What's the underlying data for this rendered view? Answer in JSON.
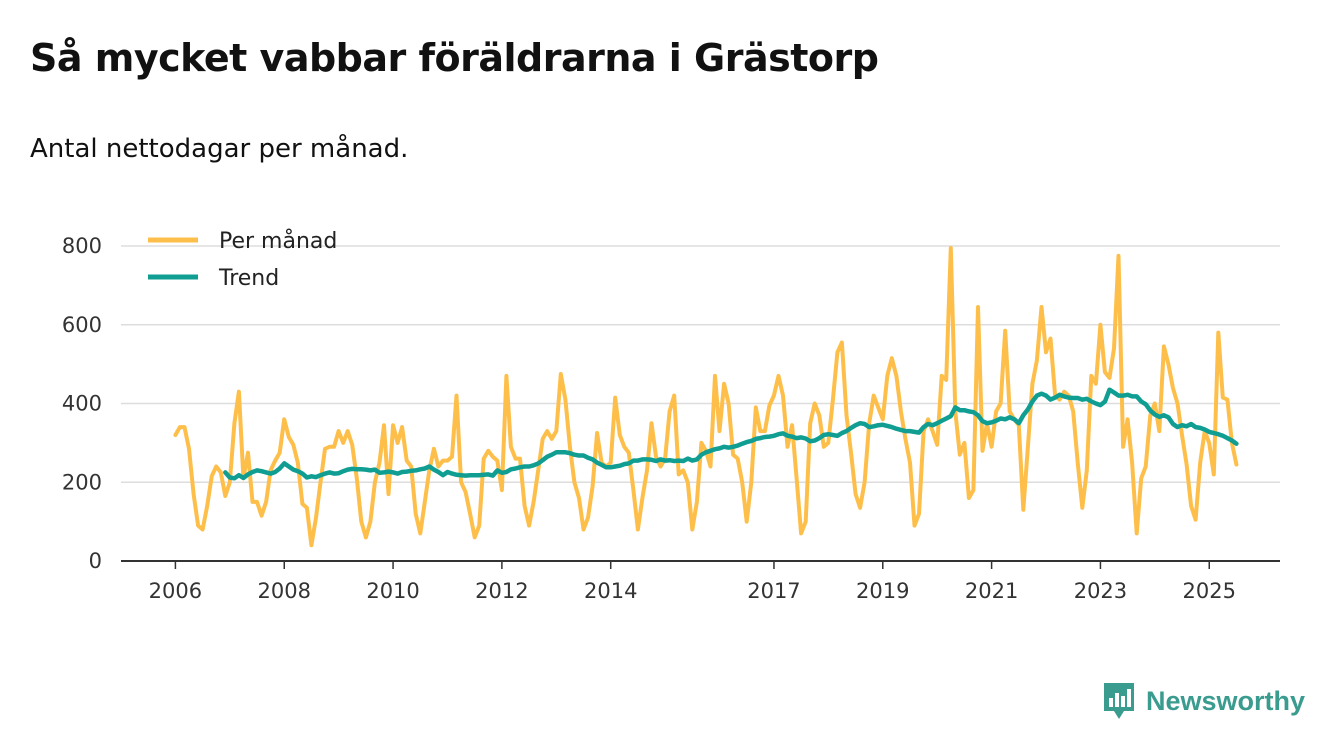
{
  "colors": {
    "monthly": "#fdbf4a",
    "trend": "#109e93",
    "brand": "#3a9b8f",
    "grid": "#dddddd",
    "axis": "#333333"
  },
  "brand": {
    "name": "Newsworthy",
    "icon": "newsworthy-logo-icon"
  },
  "chart_data": {
    "type": "line",
    "title": "Så mycket vabbar föräldrarna i Grästorp",
    "subtitle": "Antal nettodagar per månad.",
    "xlabel": "",
    "ylabel": "",
    "ylim": [
      0,
      800
    ],
    "xlim": [
      2005.0,
      2026.3
    ],
    "grid": true,
    "legend": "top-left",
    "yticks": [
      0,
      200,
      400,
      600,
      800
    ],
    "xticks": [
      2006,
      2008,
      2010,
      2012,
      2014,
      2017,
      2019,
      2021,
      2023,
      2025
    ],
    "x_start": 2006.0,
    "x_step": 0.08333,
    "series": [
      {
        "name": "Per månad",
        "values": [
          320,
          340,
          340,
          285,
          170,
          90,
          80,
          140,
          215,
          240,
          225,
          165,
          200,
          350,
          430,
          210,
          275,
          150,
          150,
          115,
          150,
          230,
          255,
          275,
          360,
          315,
          295,
          250,
          145,
          135,
          40,
          110,
          200,
          285,
          290,
          290,
          330,
          300,
          330,
          295,
          210,
          100,
          60,
          100,
          200,
          250,
          345,
          170,
          345,
          300,
          340,
          255,
          240,
          120,
          70,
          150,
          230,
          285,
          240,
          255,
          255,
          265,
          420,
          200,
          175,
          120,
          60,
          90,
          260,
          280,
          265,
          255,
          180,
          470,
          290,
          260,
          260,
          140,
          90,
          150,
          230,
          310,
          330,
          310,
          330,
          475,
          410,
          290,
          200,
          160,
          80,
          110,
          190,
          325,
          250,
          240,
          250,
          415,
          320,
          290,
          275,
          180,
          80,
          160,
          230,
          350,
          265,
          240,
          260,
          380,
          420,
          220,
          230,
          200,
          80,
          150,
          300,
          280,
          240,
          470,
          330,
          450,
          400,
          270,
          260,
          200,
          100,
          200,
          390,
          330,
          330,
          395,
          420,
          470,
          420,
          290,
          345,
          210,
          70,
          100,
          350,
          400,
          370,
          290,
          300,
          410,
          530,
          555,
          370,
          275,
          170,
          135,
          200,
          350,
          420,
          390,
          360,
          470,
          515,
          470,
          380,
          310,
          250,
          90,
          120,
          330,
          360,
          330,
          295,
          470,
          460,
          795,
          380,
          270,
          300,
          160,
          180,
          645,
          280,
          350,
          290,
          380,
          400,
          585,
          380,
          360,
          345,
          130,
          290,
          450,
          510,
          645,
          530,
          565,
          420,
          410,
          430,
          420,
          380,
          250,
          135,
          230,
          470,
          450,
          600,
          480,
          465,
          540,
          775,
          290,
          360,
          250,
          70,
          210,
          240,
          370,
          400,
          330,
          545,
          500,
          440,
          400,
          320,
          245,
          140,
          105,
          250,
          330,
          300,
          220,
          580,
          415,
          410,
          300,
          245
        ]
      },
      {
        "name": "Trend",
        "x_start": 2006.917,
        "values": [
          225,
          212,
          210,
          218,
          211,
          220,
          226,
          230,
          228,
          225,
          222,
          226,
          235,
          248,
          240,
          232,
          228,
          222,
          212,
          215,
          213,
          218,
          222,
          225,
          222,
          223,
          228,
          232,
          234,
          233,
          233,
          232,
          230,
          232,
          224,
          225,
          227,
          225,
          222,
          226,
          227,
          229,
          230,
          233,
          235,
          240,
          232,
          226,
          218,
          226,
          222,
          219,
          218,
          217,
          218,
          218,
          218,
          219,
          220,
          217,
          230,
          224,
          226,
          233,
          235,
          238,
          240,
          240,
          243,
          248,
          256,
          265,
          270,
          276,
          276,
          276,
          274,
          270,
          268,
          268,
          262,
          258,
          250,
          244,
          238,
          238,
          240,
          242,
          246,
          248,
          255,
          255,
          258,
          258,
          257,
          254,
          258,
          255,
          256,
          254,
          255,
          254,
          260,
          255,
          258,
          270,
          276,
          280,
          284,
          286,
          290,
          288,
          290,
          293,
          298,
          302,
          305,
          310,
          312,
          315,
          316,
          318,
          322,
          324,
          318,
          316,
          312,
          314,
          311,
          304,
          306,
          312,
          320,
          322,
          320,
          318,
          325,
          330,
          338,
          345,
          350,
          348,
          340,
          342,
          345,
          346,
          343,
          340,
          336,
          333,
          330,
          330,
          328,
          326,
          340,
          348,
          345,
          350,
          356,
          362,
          368,
          390,
          383,
          383,
          380,
          378,
          370,
          355,
          350,
          352,
          356,
          362,
          360,
          365,
          360,
          350,
          370,
          385,
          405,
          420,
          425,
          420,
          410,
          415,
          422,
          418,
          415,
          414,
          414,
          410,
          412,
          405,
          400,
          396,
          405,
          435,
          428,
          420,
          420,
          422,
          418,
          418,
          405,
          398,
          382,
          372,
          366,
          370,
          365,
          348,
          340,
          345,
          342,
          348,
          340,
          338,
          334,
          328,
          325,
          322,
          318,
          312,
          306,
          298
        ]
      }
    ]
  }
}
